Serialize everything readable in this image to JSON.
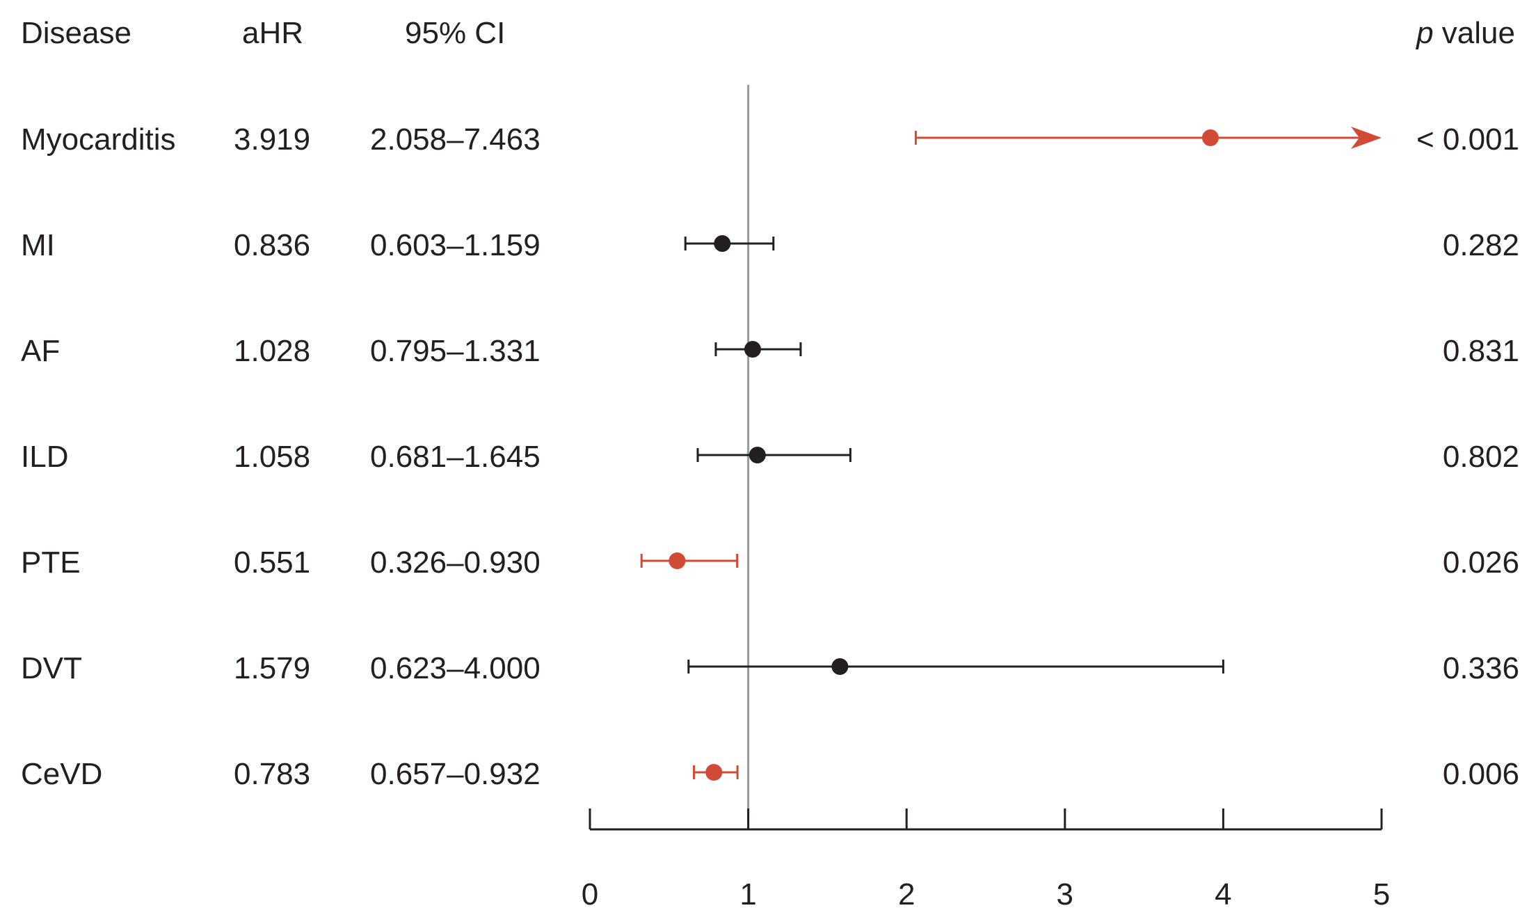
{
  "chart_data": {
    "type": "forest",
    "headers": {
      "disease": "Disease",
      "ahr": "aHR",
      "ci": "95% CI",
      "p_italic": "p",
      "p_rest": " value"
    },
    "rows": [
      {
        "disease": "Myocarditis",
        "ahr_text": "3.919",
        "ci_text": "2.058–7.463",
        "p_text": "< 0.001",
        "ahr": 3.919,
        "ci_low": 2.058,
        "ci_high": 7.463,
        "significant": true
      },
      {
        "disease": "MI",
        "ahr_text": "0.836",
        "ci_text": "0.603–1.159",
        "p_text": "0.282",
        "ahr": 0.836,
        "ci_low": 0.603,
        "ci_high": 1.159,
        "significant": false
      },
      {
        "disease": "AF",
        "ahr_text": "1.028",
        "ci_text": "0.795–1.331",
        "p_text": "0.831",
        "ahr": 1.028,
        "ci_low": 0.795,
        "ci_high": 1.331,
        "significant": false
      },
      {
        "disease": "ILD",
        "ahr_text": "1.058",
        "ci_text": "0.681–1.645",
        "p_text": "0.802",
        "ahr": 1.058,
        "ci_low": 0.681,
        "ci_high": 1.645,
        "significant": false
      },
      {
        "disease": "PTE",
        "ahr_text": "0.551",
        "ci_text": "0.326–0.930",
        "p_text": "0.026",
        "ahr": 0.551,
        "ci_low": 0.326,
        "ci_high": 0.93,
        "significant": true
      },
      {
        "disease": "DVT",
        "ahr_text": "1.579",
        "ci_text": "0.623–4.000",
        "p_text": "0.336",
        "ahr": 1.579,
        "ci_low": 0.623,
        "ci_high": 4.0,
        "significant": false
      },
      {
        "disease": "CeVD",
        "ahr_text": "0.783",
        "ci_text": "0.657–0.932",
        "p_text": "0.006",
        "ahr": 0.783,
        "ci_low": 0.657,
        "ci_high": 0.932,
        "significant": true
      }
    ],
    "xlim": [
      0,
      5
    ],
    "x_ticks": [
      "0",
      "1",
      "2",
      "3",
      "4",
      "5"
    ],
    "reference_line": 1,
    "colors": {
      "significant": "#d14a36",
      "nonsignificant": "#231f20",
      "reference": "#9a9a9a",
      "axis": "#231f20"
    }
  }
}
